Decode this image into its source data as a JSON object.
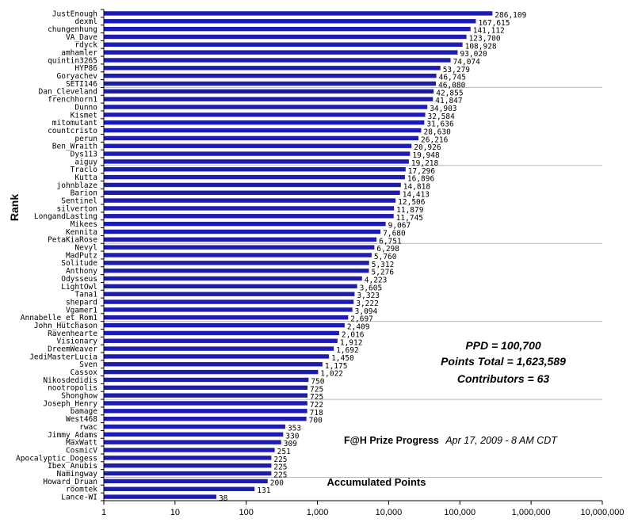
{
  "chart_data": {
    "type": "bar",
    "orientation": "horizontal",
    "scale": "log",
    "xlim": [
      1,
      10000000
    ],
    "grid": "horizontal lines",
    "bar_color": "#1c1cb4",
    "categories": [
      "JustEnough",
      "dexml",
      "chungenhung",
      "VA_Dave",
      "rdyck",
      "amhamler",
      "quintin3265",
      "HYP86",
      "Goryachev",
      "SETI146",
      "Dan_Cleveland",
      "frenchhorn1",
      "Dunno",
      "Kismet",
      "mitomutant",
      "countcristo",
      "perun",
      "Ben_Wraith",
      "Dys113",
      "aiguy",
      "Traclo",
      "Kutta",
      "johnblaze",
      "Barion",
      "Sentinel",
      "silverton",
      "LongandLasting",
      "Mikees",
      "Kennita",
      "PetaKiaRose",
      "Nevyl",
      "MadPutz",
      "Solitude",
      "Anthony",
      "Odysseus",
      "LightOwl",
      "Tana1",
      "shepard",
      "Vgamer1",
      "Annabelle_et_Rom1",
      "John_Hutchason",
      "Ravenhearte",
      "Visionary",
      "DreemWeaver",
      "JediMasterLucia",
      "Sven",
      "Cassox",
      "Nikosdedidis",
      "nootropolis",
      "Shonghow",
      "Joseph_Henry",
      "bamage",
      "West468",
      "rwac",
      "Jimmy_Adams",
      "MaxWatt",
      "CosmicV",
      "Apocalyptic_Dogess",
      "Ibex_Anubis",
      "Namingway",
      "Howard_Druan",
      "roomtek",
      "Lance-WI"
    ],
    "values": [
      286109,
      167615,
      141112,
      123700,
      108928,
      93020,
      74074,
      53279,
      46745,
      46080,
      42855,
      41847,
      34903,
      32584,
      31636,
      28630,
      26216,
      20926,
      19948,
      19218,
      17296,
      16896,
      14818,
      14413,
      12506,
      11879,
      11745,
      9067,
      7680,
      6751,
      6298,
      5760,
      5312,
      5276,
      4223,
      3605,
      3323,
      3222,
      3094,
      2697,
      2409,
      2016,
      1912,
      1692,
      1450,
      1175,
      1022,
      750,
      725,
      725,
      722,
      718,
      700,
      353,
      330,
      309,
      251,
      225,
      225,
      225,
      200,
      131,
      38
    ],
    "value_labels": [
      "286,109",
      "167,615",
      "141,112",
      "123,700",
      "108,928",
      "93,020",
      "74,074",
      "53,279",
      "46,745",
      "46,080",
      "42,855",
      "41,847",
      "34,903",
      "32,584",
      "31,636",
      "28,630",
      "26,216",
      "20,926",
      "19,948",
      "19,218",
      "17,296",
      "16,896",
      "14,818",
      "14,413",
      "12,506",
      "11,879",
      "11,745",
      "9,067",
      "7,680",
      "6,751",
      "6,298",
      "5,760",
      "5,312",
      "5,276",
      "4,223",
      "3,605",
      "3,323",
      "3,222",
      "3,094",
      "2,697",
      "2,409",
      "2,016",
      "1,912",
      "1,692",
      "1,450",
      "1,175",
      "1,022",
      "750",
      "725",
      "725",
      "722",
      "718",
      "700",
      "353",
      "330",
      "309",
      "251",
      "225",
      "225",
      "225",
      "200",
      "131",
      "38"
    ],
    "tick_labels": [
      "1",
      "10",
      "100",
      "1,000",
      "10,000",
      "100,000",
      "1,000,000",
      "10,000,000"
    ],
    "ylabel": "Rank",
    "xlabel": "Accumulated Points",
    "stats": [
      "PPD = 100,700",
      "Points Total = 1,623,589",
      "Contributors = 63"
    ],
    "progress_title": "F@H Prize Progress",
    "progress_date": "Apr 17, 2009 - 8 AM CDT"
  }
}
